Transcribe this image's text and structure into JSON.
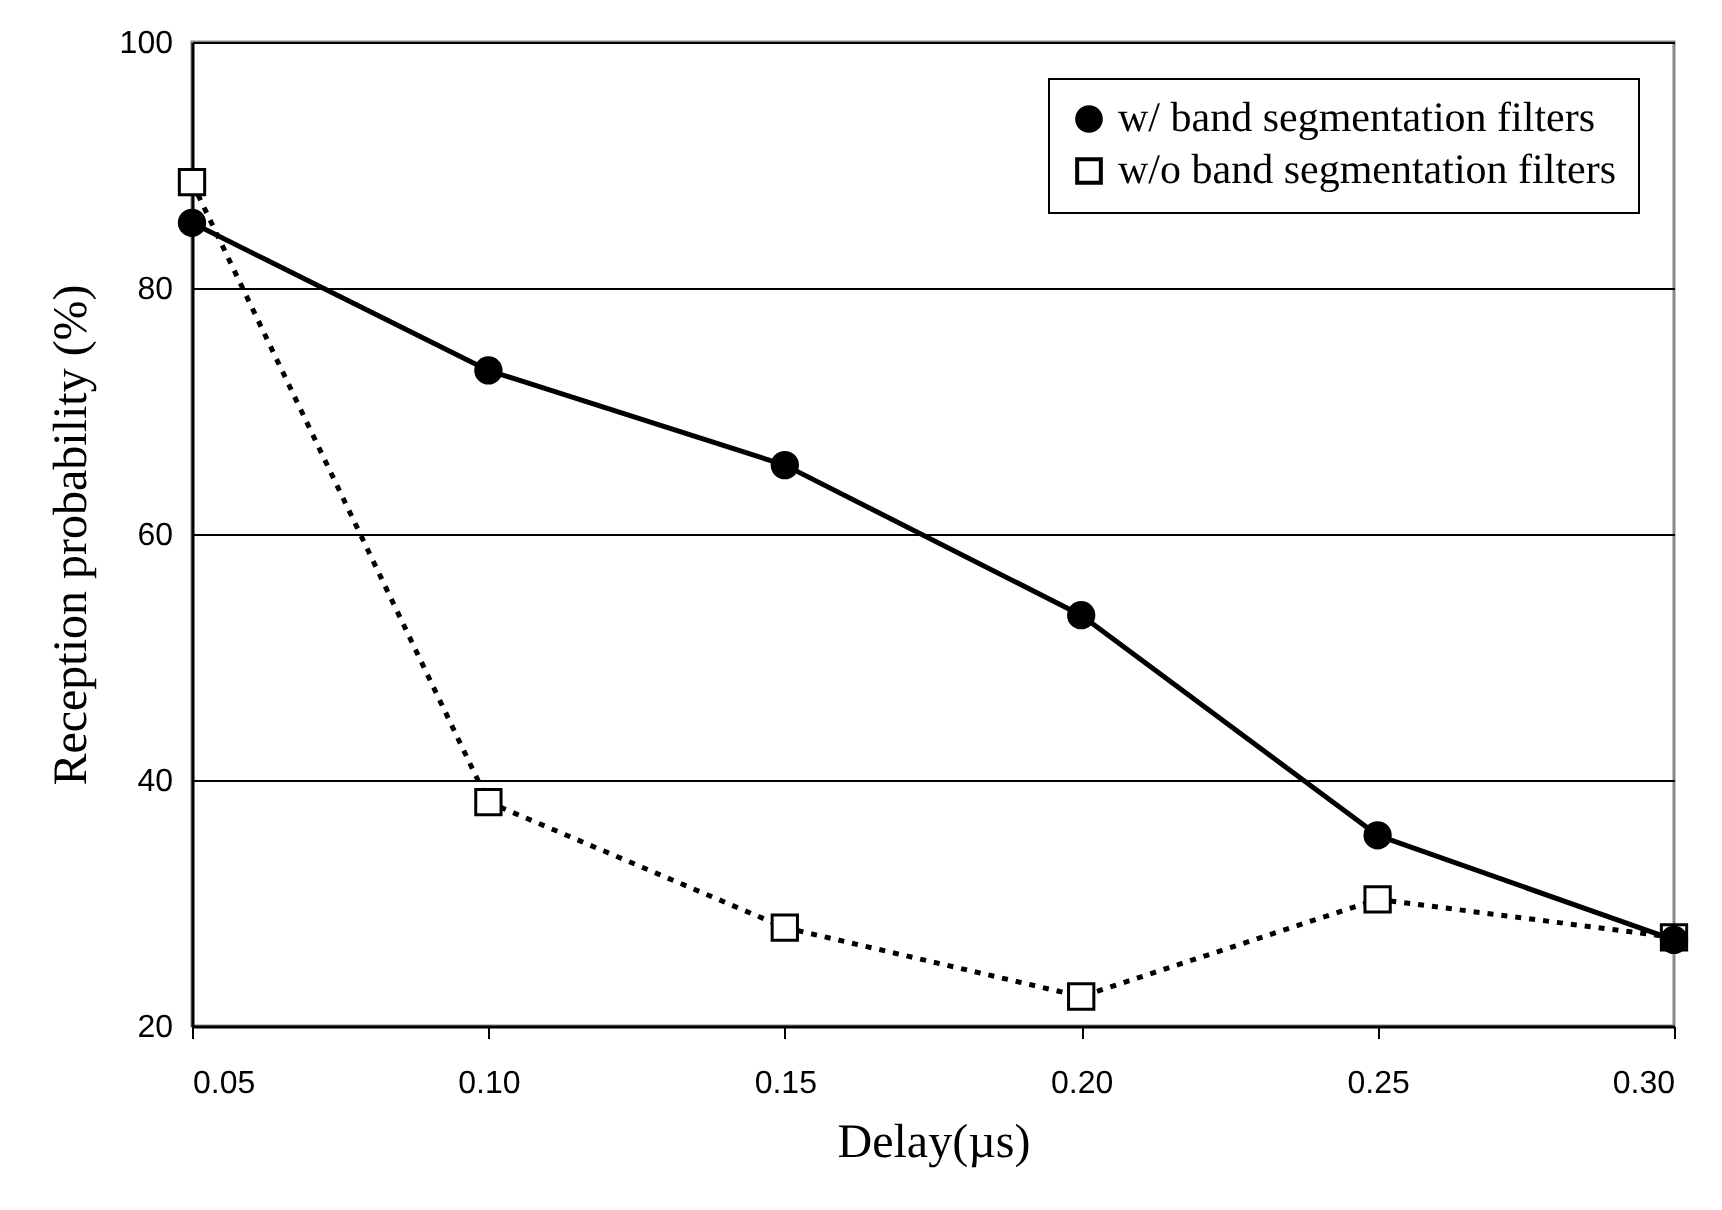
{
  "chart_data": {
    "type": "line",
    "xlabel": "Delay(µs)",
    "ylabel": "Reception probability (%)",
    "x": [
      0.05,
      0.1,
      0.15,
      0.2,
      0.25,
      0.3
    ],
    "series": [
      {
        "name": "w/ band segmentation filters",
        "color": "#000000",
        "marker": "circle",
        "line_style": "solid",
        "values": [
          85.3,
          73.3,
          65.6,
          53.4,
          35.5,
          27.0
        ]
      },
      {
        "name": "w/o band segmentation filters",
        "color": "#000000",
        "marker": "square",
        "line_style": "dotted",
        "values": [
          88.6,
          38.2,
          28.0,
          22.4,
          30.3,
          27.2
        ]
      }
    ],
    "xlim": [
      0.05,
      0.3
    ],
    "xticks": [
      {
        "value": 0.05,
        "label": "0.05"
      },
      {
        "value": 0.1,
        "label": "0.10"
      },
      {
        "value": 0.15,
        "label": "0.15"
      },
      {
        "value": 0.2,
        "label": "0.20"
      },
      {
        "value": 0.25,
        "label": "0.25"
      },
      {
        "value": 0.3,
        "label": "0.30"
      }
    ],
    "ylim": [
      20,
      100
    ],
    "yticks": [
      20,
      40,
      60,
      80,
      100
    ],
    "grid": "y",
    "legend": "top right"
  }
}
